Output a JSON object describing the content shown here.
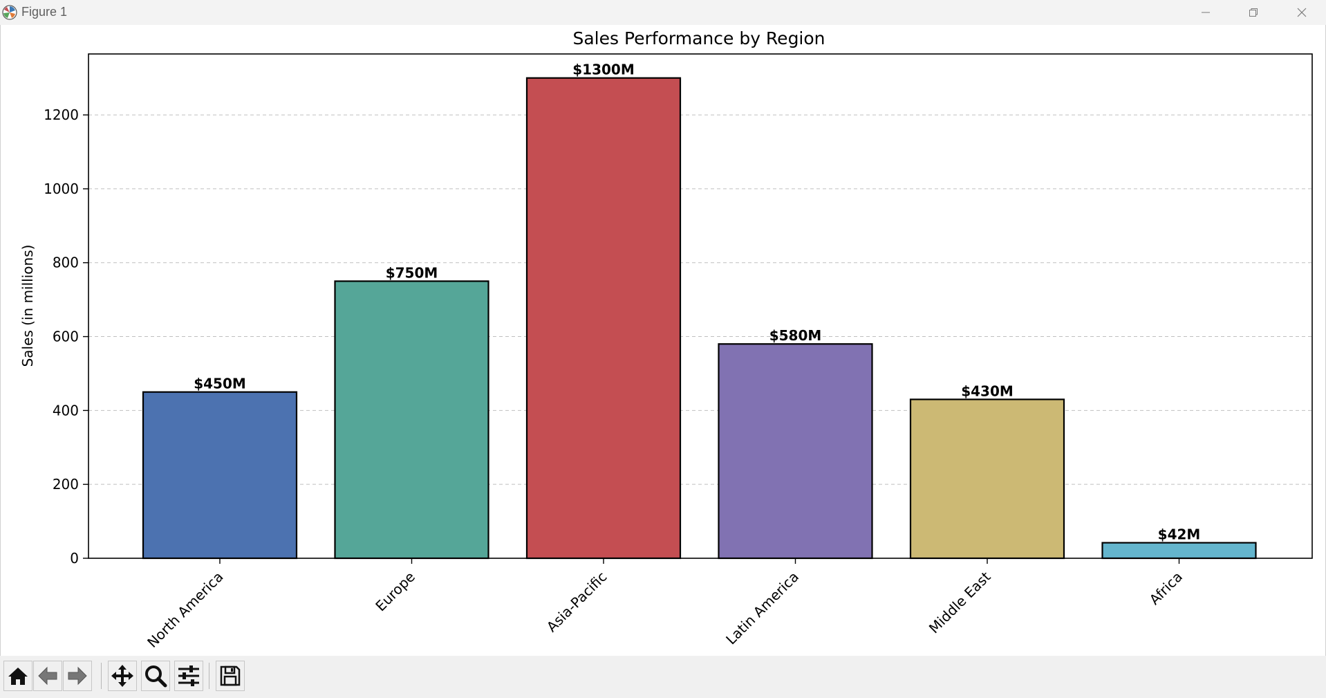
{
  "window": {
    "title": "Figure 1",
    "controls": [
      "minimize",
      "restore",
      "close"
    ]
  },
  "toolbar": {
    "buttons": [
      {
        "name": "home",
        "icon": "home-icon"
      },
      {
        "name": "back",
        "icon": "arrow-left-icon"
      },
      {
        "name": "forward",
        "icon": "arrow-right-icon"
      },
      {
        "name": "pan",
        "icon": "move-icon"
      },
      {
        "name": "zoom",
        "icon": "magnifier-icon"
      },
      {
        "name": "configure-subplots",
        "icon": "sliders-icon"
      },
      {
        "name": "save",
        "icon": "floppy-disk-icon"
      }
    ]
  },
  "chart_data": {
    "type": "bar",
    "title": "Sales Performance by Region",
    "xlabel": "",
    "ylabel": "Sales (in millions)",
    "categories": [
      "North America",
      "Europe",
      "Asia-Pacific",
      "Latin America",
      "Middle East",
      "Africa"
    ],
    "values": [
      450,
      750,
      1300,
      580,
      430,
      42
    ],
    "value_labels": [
      "$450M",
      "$750M",
      "$1300M",
      "$580M",
      "$430M",
      "$42M"
    ],
    "colors": [
      "#4c72b0",
      "#55a698",
      "#c44e52",
      "#8172b2",
      "#ccb974",
      "#64b5cd"
    ],
    "edge_color": "#000000",
    "ylim": [
      0,
      1365
    ],
    "yticks": [
      0,
      200,
      400,
      600,
      800,
      1000,
      1200
    ],
    "ytick_labels": [
      "0",
      "200",
      "400",
      "600",
      "800",
      "1000",
      "1200"
    ],
    "grid": "y-dashed",
    "xtick_rotation": 45
  }
}
